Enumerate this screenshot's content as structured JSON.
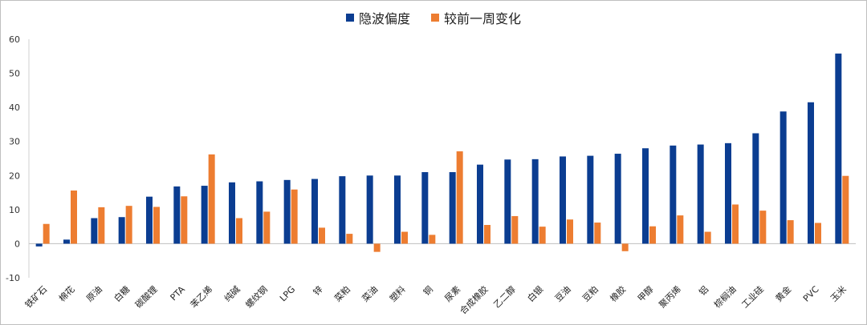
{
  "chart_data": {
    "type": "bar",
    "title": "",
    "xlabel": "",
    "ylabel": "",
    "ylim": [
      -10,
      60
    ],
    "yticks": [
      -10,
      0,
      10,
      20,
      30,
      40,
      50,
      60
    ],
    "grid": false,
    "legend_position": "top-center",
    "categories": [
      "铁矿石",
      "棉花",
      "原油",
      "白糖",
      "碳酸锂",
      "PTA",
      "苯乙烯",
      "纯碱",
      "螺纹钢",
      "LPG",
      "锌",
      "菜粕",
      "菜油",
      "塑料",
      "铜",
      "尿素",
      "合成橡胶",
      "乙二醇",
      "白银",
      "豆油",
      "豆粕",
      "橡胶",
      "甲醇",
      "聚丙烯",
      "铝",
      "棕榈油",
      "工业硅",
      "黄金",
      "PVC",
      "玉米"
    ],
    "series": [
      {
        "name": "隐波偏度",
        "color": "#0b3d91",
        "values": [
          -0.8,
          1.2,
          7.5,
          7.8,
          13.8,
          16.8,
          17.0,
          18.0,
          18.3,
          18.7,
          19.0,
          19.8,
          20.0,
          20.0,
          21.0,
          21.0,
          23.2,
          24.7,
          24.8,
          25.6,
          25.8,
          26.4,
          28.0,
          28.8,
          29.1,
          29.5,
          32.4,
          38.8,
          41.5,
          55.8
        ]
      },
      {
        "name": "较前一周变化",
        "color": "#ed7d31",
        "values": [
          5.8,
          15.6,
          10.7,
          11.1,
          10.8,
          13.9,
          26.2,
          7.5,
          9.4,
          15.9,
          4.7,
          2.9,
          -2.4,
          3.5,
          2.6,
          27.1,
          5.5,
          8.1,
          5.0,
          7.1,
          6.2,
          -2.2,
          5.1,
          8.3,
          3.5,
          11.5,
          9.7,
          6.9,
          6.1,
          19.9
        ]
      }
    ]
  }
}
